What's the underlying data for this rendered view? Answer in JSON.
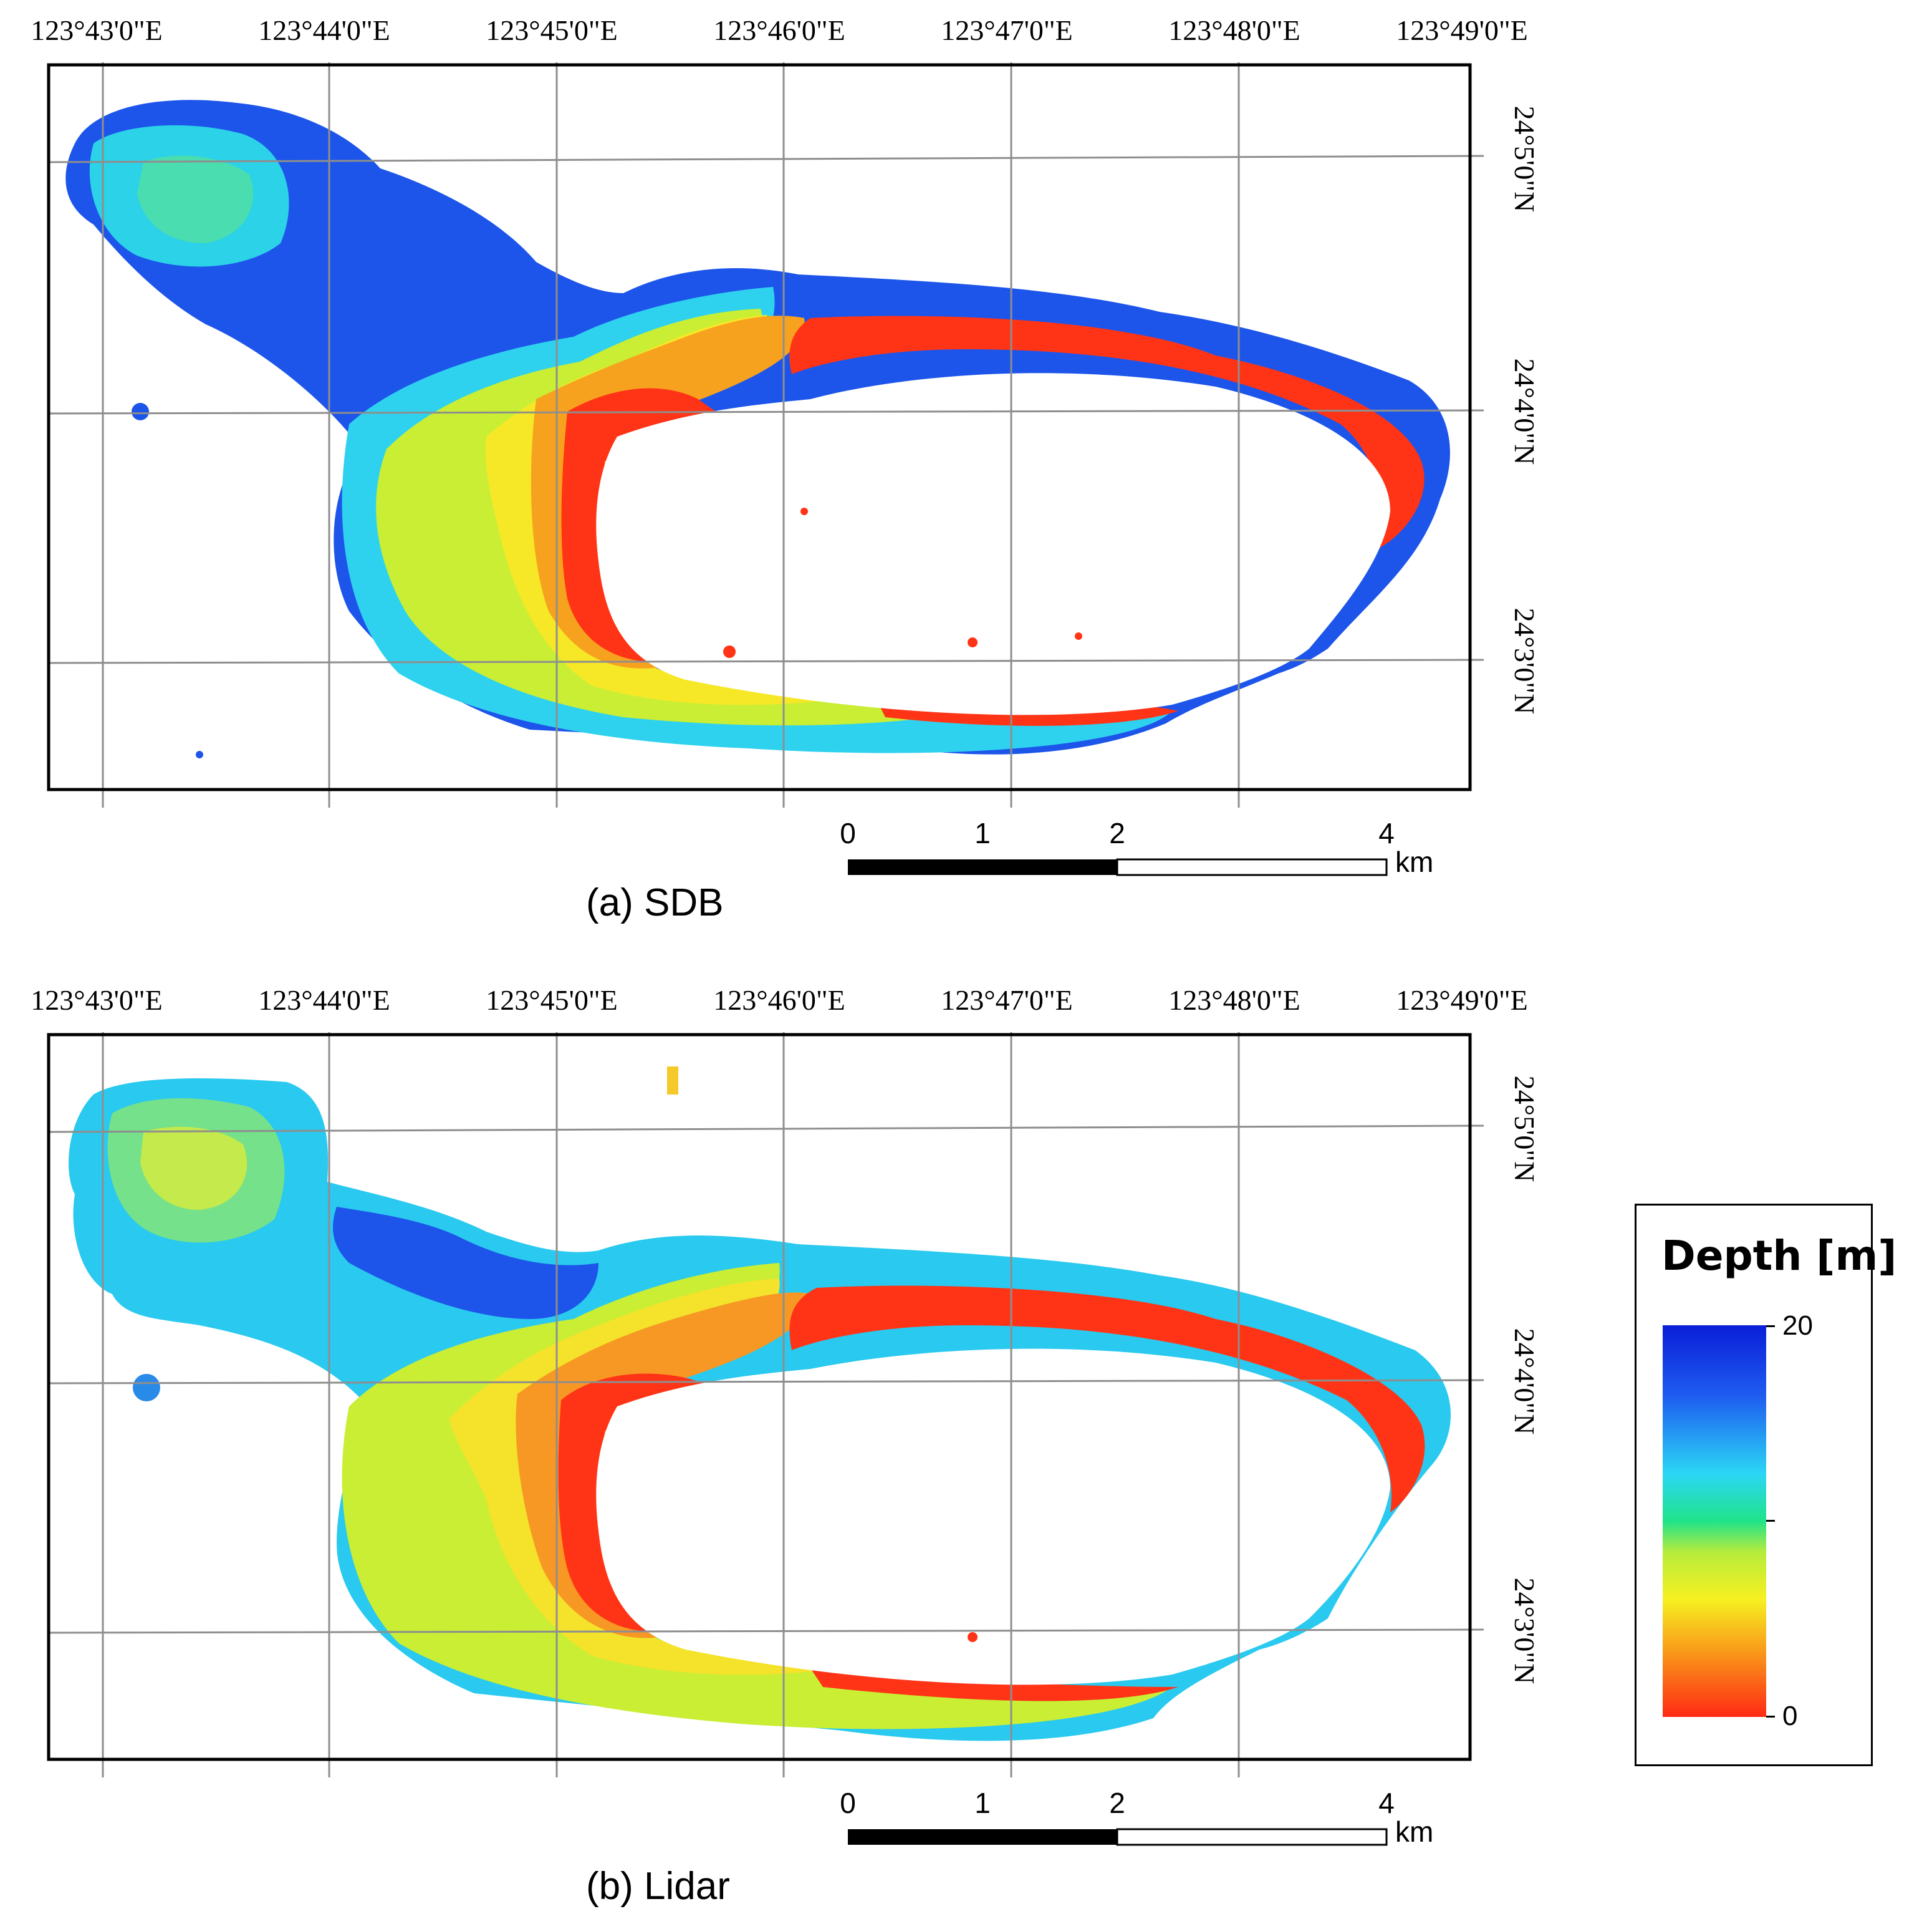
{
  "panels": [
    {
      "caption": "(a) SDB",
      "lon_labels": [
        "123°43'0\"E",
        "123°44'0\"E",
        "123°45'0\"E",
        "123°46'0\"E",
        "123°47'0\"E",
        "123°48'0\"E",
        "123°49'0\"E"
      ],
      "lat_labels": [
        "24°5'0\"N",
        "24°4'0\"N",
        "24°3'0\"N"
      ],
      "scale_labels": [
        "0",
        "1",
        "2",
        "4"
      ],
      "scale_unit": "km"
    },
    {
      "caption": "(b) Lidar",
      "lon_labels": [
        "123°43'0\"E",
        "123°44'0\"E",
        "123°45'0\"E",
        "123°46'0\"E",
        "123°47'0\"E",
        "123°48'0\"E",
        "123°49'0\"E"
      ],
      "lat_labels": [
        "24°5'0\"N",
        "24°4'0\"N",
        "24°3'0\"N"
      ],
      "scale_labels": [
        "0",
        "1",
        "2",
        "4"
      ],
      "scale_unit": "km"
    }
  ],
  "legend": {
    "title": "Depth [m]",
    "max_label": "20",
    "min_label": "0",
    "colors": [
      "#0a1fd8",
      "#2bd7f5",
      "#20e38a",
      "#f6f020",
      "#ff2a14"
    ]
  }
}
